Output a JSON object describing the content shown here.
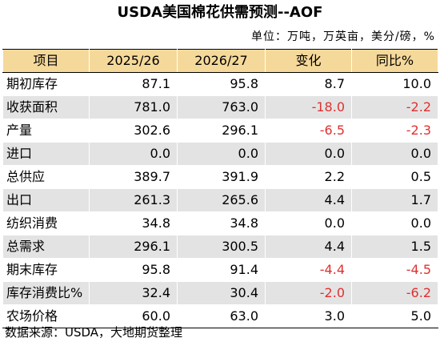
{
  "title": "USDA美国棉花供需预测--AOF",
  "unit": "单位：万吨，万英亩，美分/磅，%",
  "columns": [
    "项目",
    "2025/26",
    "2026/27",
    "变化",
    "同比%"
  ],
  "rows": [
    {
      "label": "期初库存",
      "v2025": "87.1",
      "v2026": "95.8",
      "change": "8.7",
      "yoy": "10.0"
    },
    {
      "label": "收获面积",
      "v2025": "781.0",
      "v2026": "763.0",
      "change": "-18.0",
      "yoy": "-2.2"
    },
    {
      "label": "产量",
      "v2025": "302.6",
      "v2026": "296.1",
      "change": "-6.5",
      "yoy": "-2.3"
    },
    {
      "label": "进口",
      "v2025": "0.0",
      "v2026": "0.0",
      "change": "0.0",
      "yoy": "0.0"
    },
    {
      "label": "总供应",
      "v2025": "389.7",
      "v2026": "391.9",
      "change": "2.2",
      "yoy": "0.5"
    },
    {
      "label": "出口",
      "v2025": "261.3",
      "v2026": "265.6",
      "change": "4.4",
      "yoy": "1.7"
    },
    {
      "label": "纺织消费",
      "v2025": "34.8",
      "v2026": "34.8",
      "change": "0.0",
      "yoy": "0.0"
    },
    {
      "label": "总需求",
      "v2025": "296.1",
      "v2026": "300.5",
      "change": "4.4",
      "yoy": "1.5"
    },
    {
      "label": "期末库存",
      "v2025": "95.8",
      "v2026": "91.4",
      "change": "-4.4",
      "yoy": "-4.5"
    },
    {
      "label": "库存消费比%",
      "v2025": "32.4",
      "v2026": "30.4",
      "change": "-2.0",
      "yoy": "-6.2"
    },
    {
      "label": "农场价格",
      "v2025": "60.0",
      "v2026": "63.0",
      "change": "3.0",
      "yoy": "5.0"
    }
  ],
  "source": "数据来源：USDA，大地期货整理",
  "colors": {
    "header_bg": "#f5d99a",
    "stripe_bg": "#e3e3e3",
    "negative": "#e03030"
  }
}
